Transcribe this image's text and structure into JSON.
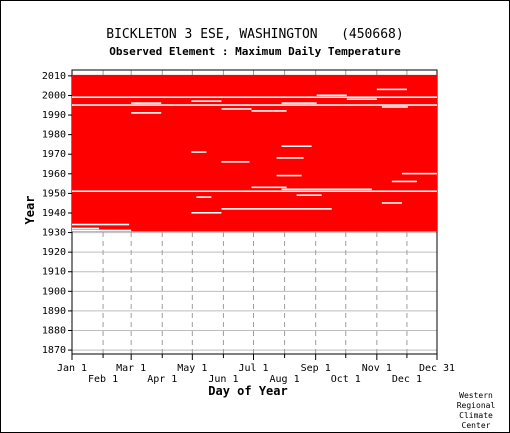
{
  "chart_data": {
    "type": "heatmap",
    "title": "BICKLETON 3 ESE, WASHINGTON   (450668)",
    "subtitle": "Observed Element : Maximum Daily Temperature",
    "xlabel": "Day of Year",
    "ylabel": "Year",
    "x_ticks_upper": [
      {
        "label": "Jan 1",
        "day": 1
      },
      {
        "label": "Mar 1",
        "day": 60
      },
      {
        "label": "May 1",
        "day": 121
      },
      {
        "label": "Jul 1",
        "day": 182
      },
      {
        "label": "Sep 1",
        "day": 244
      },
      {
        "label": "Nov 1",
        "day": 305
      },
      {
        "label": "Dec 31",
        "day": 365
      }
    ],
    "x_ticks_lower": [
      {
        "label": "Feb 1",
        "day": 32
      },
      {
        "label": "Apr 1",
        "day": 91
      },
      {
        "label": "Jun 1",
        "day": 152
      },
      {
        "label": "Aug 1",
        "day": 213
      },
      {
        "label": "Oct 1",
        "day": 274
      },
      {
        "label": "Dec 1",
        "day": 335
      }
    ],
    "y_ticks": [
      "1870",
      "1880",
      "1890",
      "1900",
      "1910",
      "1920",
      "1930",
      "1940",
      "1950",
      "1960",
      "1970",
      "1980",
      "1990",
      "2000",
      "2010"
    ],
    "xlim": [
      1,
      365
    ],
    "ylim": [
      1870,
      2010
    ],
    "grid": true,
    "data_color": "#ff0000",
    "record_years": [
      1931,
      2010
    ],
    "missing_periods": [
      {
        "year": 1931,
        "start": 1,
        "end": 60
      },
      {
        "year": 1932,
        "start": 1,
        "end": 28
      },
      {
        "year": 1934,
        "start": 1,
        "end": 58
      },
      {
        "year": 1940,
        "start": 120,
        "end": 150
      },
      {
        "year": 1942,
        "start": 150,
        "end": 260
      },
      {
        "year": 1945,
        "start": 310,
        "end": 330
      },
      {
        "year": 1948,
        "start": 125,
        "end": 140
      },
      {
        "year": 1949,
        "start": 225,
        "end": 250
      },
      {
        "year": 1951,
        "start": 1,
        "end": 365
      },
      {
        "year": 1952,
        "start": 210,
        "end": 300
      },
      {
        "year": 1953,
        "start": 180,
        "end": 215
      },
      {
        "year": 1956,
        "start": 320,
        "end": 345
      },
      {
        "year": 1959,
        "start": 205,
        "end": 230
      },
      {
        "year": 1960,
        "start": 330,
        "end": 365
      },
      {
        "year": 1966,
        "start": 150,
        "end": 178
      },
      {
        "year": 1968,
        "start": 205,
        "end": 232
      },
      {
        "year": 1971,
        "start": 120,
        "end": 135
      },
      {
        "year": 1974,
        "start": 210,
        "end": 240
      },
      {
        "year": 1991,
        "start": 60,
        "end": 90
      },
      {
        "year": 1992,
        "start": 180,
        "end": 215
      },
      {
        "year": 1993,
        "start": 150,
        "end": 180
      },
      {
        "year": 1994,
        "start": 310,
        "end": 336
      },
      {
        "year": 1995,
        "start": 1,
        "end": 365
      },
      {
        "year": 1996,
        "start": 60,
        "end": 90
      },
      {
        "year": 1996,
        "start": 210,
        "end": 245
      },
      {
        "year": 1997,
        "start": 120,
        "end": 150
      },
      {
        "year": 1998,
        "start": 275,
        "end": 305
      },
      {
        "year": 1999,
        "start": 1,
        "end": 365
      },
      {
        "year": 2000,
        "start": 245,
        "end": 275
      },
      {
        "year": 2003,
        "start": 305,
        "end": 335
      }
    ],
    "credit": [
      "Western",
      "Regional",
      "Climate",
      "Center"
    ]
  }
}
